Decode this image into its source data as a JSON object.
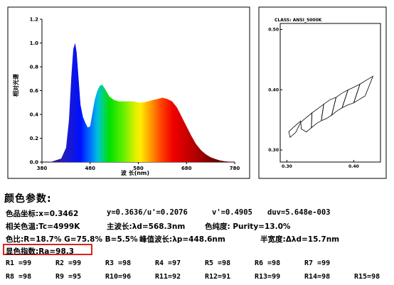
{
  "spectrum": {
    "x_ticks": [
      "380",
      "480",
      "580",
      "680",
      "780"
    ],
    "y_ticks": [
      "0.0",
      "0.2",
      "0.4",
      "0.6",
      "0.8",
      "1.0",
      "1.2"
    ],
    "xlabel": "波 长(nm)",
    "ylabel": "相对光谱"
  },
  "cie": {
    "class_label": "CLASS: ANSI_5000K",
    "x_ticks": [
      "0.30",
      "0.40"
    ],
    "y_ticks": [
      "0.50",
      "0.40",
      "0.30"
    ]
  },
  "params": {
    "title": "颜色参数:",
    "line1": {
      "a": "色品坐标:x=0.3462",
      "b": "y=0.3636/u'=0.2076",
      "c": "v'=0.4905",
      "d": "duv=5.648e-003"
    },
    "line2": {
      "a": "相关色温:Tc=4999K",
      "b": "主波长:λd=568.3nm",
      "c": "色纯度: Purity=13.0%"
    },
    "line3": {
      "a": "色比:R=18.7% G=75.8% B=5.5%",
      "b": "峰值波长:λp=448.6nm",
      "c": "半宽度:Δλd=15.7nm"
    },
    "ra": "显色指数:Ra=98.3",
    "r_row1": [
      "R1 =99",
      "R2 =99",
      "R3 =98",
      "R4 =97",
      "R5 =98",
      "R6 =98",
      "R7 =99"
    ],
    "r_row2": [
      "R8 =98",
      "R9 =95",
      "R10=96",
      "R11=92",
      "R12=91",
      "R13=99",
      "R14=98",
      "R15=98"
    ]
  },
  "chart_data": [
    {
      "type": "area",
      "xlim": [
        380,
        780
      ],
      "ylim": [
        0,
        1.2
      ],
      "x": [
        380,
        400,
        420,
        430,
        436,
        441,
        445,
        449,
        452,
        456,
        460,
        465,
        470,
        475,
        480,
        485,
        490,
        495,
        500,
        505,
        510,
        520,
        530,
        540,
        550,
        560,
        570,
        580,
        590,
        600,
        610,
        620,
        630,
        640,
        650,
        660,
        670,
        680,
        690,
        700,
        710,
        720,
        730,
        740,
        750,
        760,
        780
      ],
      "values": [
        0,
        0.003,
        0.03,
        0.12,
        0.35,
        0.72,
        0.95,
        1.0,
        0.92,
        0.7,
        0.48,
        0.38,
        0.33,
        0.29,
        0.3,
        0.42,
        0.53,
        0.6,
        0.64,
        0.65,
        0.62,
        0.55,
        0.52,
        0.51,
        0.51,
        0.51,
        0.51,
        0.5,
        0.5,
        0.51,
        0.52,
        0.53,
        0.54,
        0.53,
        0.51,
        0.46,
        0.38,
        0.3,
        0.22,
        0.15,
        0.1,
        0.065,
        0.04,
        0.025,
        0.013,
        0.006,
        0
      ]
    },
    {
      "type": "line",
      "title": "CLASS: ANSI_5000K",
      "xlim": [
        0.29,
        0.44
      ],
      "ylim": [
        0.28,
        0.51
      ],
      "quadrangles": [
        [
          [
            0.3028,
            0.3304
          ],
          [
            0.3115,
            0.3393
          ],
          [
            0.3205,
            0.3481
          ],
          [
            0.3207,
            0.3462
          ],
          [
            0.313,
            0.329
          ],
          [
            0.3048,
            0.3209
          ]
        ],
        [
          [
            0.3207,
            0.3462
          ],
          [
            0.3292,
            0.3539
          ],
          [
            0.3376,
            0.3616
          ],
          [
            0.3366,
            0.3369
          ],
          [
            0.329,
            0.33
          ],
          [
            0.3215,
            0.335
          ]
        ],
        [
          [
            0.3376,
            0.3616
          ],
          [
            0.3463,
            0.3687
          ],
          [
            0.3551,
            0.376
          ],
          [
            0.3515,
            0.3487
          ],
          [
            0.3444,
            0.344
          ],
          [
            0.3366,
            0.3369
          ]
        ],
        [
          [
            0.3551,
            0.376
          ],
          [
            0.3646,
            0.3835
          ],
          [
            0.3736,
            0.3874
          ],
          [
            0.367,
            0.3578
          ],
          [
            0.359,
            0.3521
          ],
          [
            0.3515,
            0.3487
          ]
        ],
        [
          [
            0.3736,
            0.3874
          ],
          [
            0.3829,
            0.3946
          ],
          [
            0.3914,
            0.3996
          ],
          [
            0.3826,
            0.37
          ],
          [
            0.3744,
            0.3644
          ],
          [
            0.367,
            0.3578
          ]
        ],
        [
          [
            0.3914,
            0.3996
          ],
          [
            0.4006,
            0.4044
          ],
          [
            0.4093,
            0.4093
          ],
          [
            0.4,
            0.3783
          ],
          [
            0.3905,
            0.3745
          ],
          [
            0.3826,
            0.37
          ]
        ],
        [
          [
            0.4093,
            0.4093
          ],
          [
            0.419,
            0.416
          ],
          [
            0.4287,
            0.4224
          ],
          [
            0.417,
            0.3897
          ],
          [
            0.4086,
            0.3842
          ],
          [
            0.4,
            0.3783
          ]
        ]
      ]
    }
  ]
}
